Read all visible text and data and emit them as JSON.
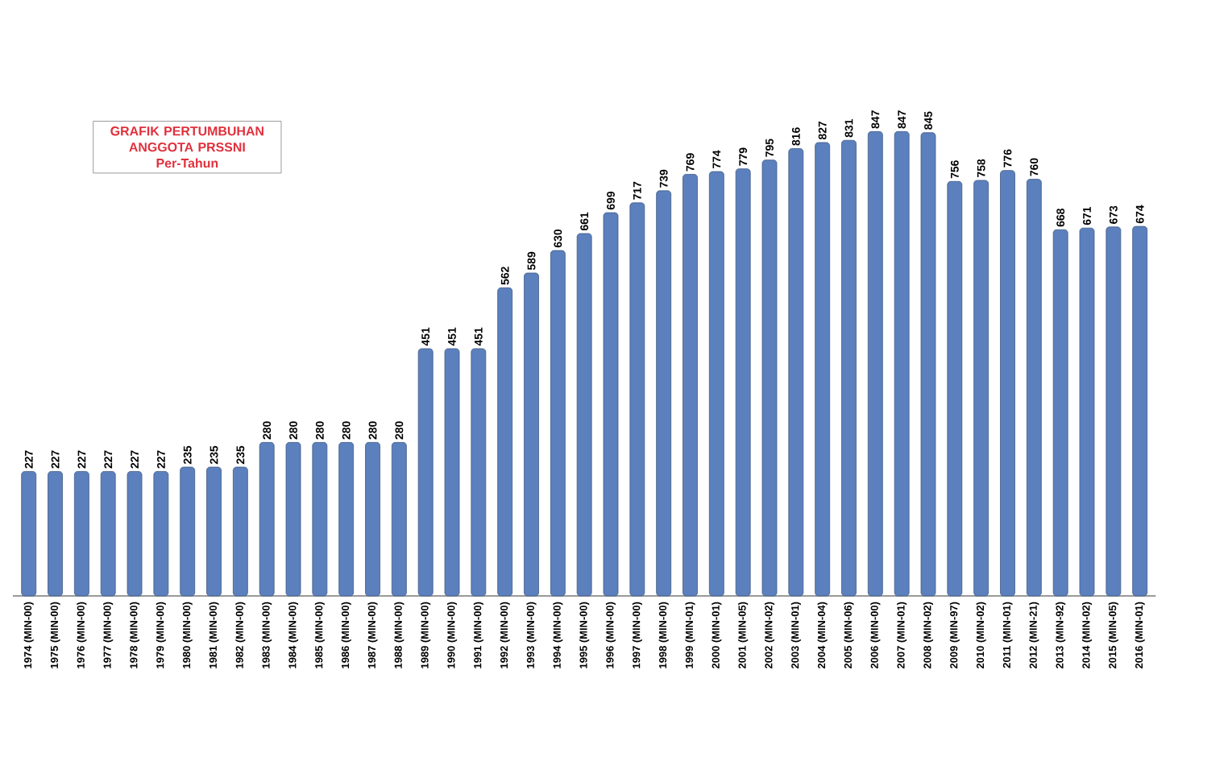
{
  "chart_data": {
    "type": "bar",
    "title": "GRAFIK PERTUMBUHAN ANGGOTA PRSSNI",
    "subtitle": "Per-Tahun",
    "categories": [
      "1974 (MIN-00)",
      "1975 (MIN-00)",
      "1976 (MIN-00)",
      "1977 (MIN-00)",
      "1978 (MIN-00)",
      "1979 (MIN-00)",
      "1980 (MIN-00)",
      "1981 (MIN-00)",
      "1982 (MIN-00)",
      "1983 (MIN-00)",
      "1984 (MIN-00)",
      "1985 (MIN-00)",
      "1986 (MIN-00)",
      "1987 (MIN-00)",
      "1988 (MIN-00)",
      "1989 (MIN-00)",
      "1990 (MIN-00)",
      "1991 (MIN-00)",
      "1992 (MIN-00)",
      "1993 (MIN-00)",
      "1994 (MIN-00)",
      "1995 (MIN-00)",
      "1996 (MIN-00)",
      "1997 (MIN-00)",
      "1998 (MIN-00)",
      "1999 (MIN-01)",
      "2000 (MIN-01)",
      "2001 (MIN-05)",
      "2002 (MIN-02)",
      "2003 (MIN-01)",
      "2004 (MIN-04)",
      "2005 (MIN-06)",
      "2006 (MIN-00)",
      "2007 (MIN-01)",
      "2008 (MIN-02)",
      "2009 (MIN-97)",
      "2010 (MIN-02)",
      "2011 (MIN-01)",
      "2012 (MIN-21)",
      "2013 (MIN-92)",
      "2014 (MIN-02)",
      "2015 (MIN-05)",
      "2016 (MIN-01)"
    ],
    "values": [
      227,
      227,
      227,
      227,
      227,
      227,
      235,
      235,
      235,
      280,
      280,
      280,
      280,
      280,
      280,
      451,
      451,
      451,
      562,
      589,
      630,
      661,
      699,
      717,
      739,
      769,
      774,
      779,
      795,
      816,
      827,
      831,
      847,
      847,
      845,
      756,
      758,
      776,
      760,
      668,
      671,
      673,
      674
    ],
    "color": "#5b80bd",
    "data_labels": true
  }
}
